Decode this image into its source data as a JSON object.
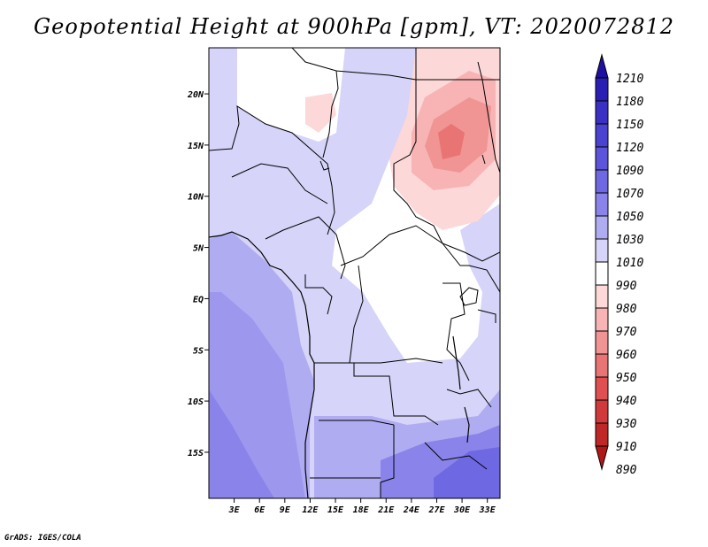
{
  "title": "Geopotential Height at 900hPa [gpm], VT: 2020072812",
  "credit": "GrADS: IGES/COLA",
  "map": {
    "lon_ticks": [
      "3E",
      "6E",
      "9E",
      "12E",
      "15E",
      "18E",
      "21E",
      "24E",
      "27E",
      "30E",
      "33E"
    ],
    "lat_ticks": [
      "20N",
      "15N",
      "10N",
      "5N",
      "EQ",
      "5S",
      "10S",
      "15S"
    ],
    "lon_range": [
      0,
      34.5
    ],
    "lat_range": [
      -19.5,
      24.5
    ]
  },
  "colorbar": {
    "labels": [
      "1210",
      "1180",
      "1150",
      "1120",
      "1090",
      "1070",
      "1050",
      "1030",
      "1010",
      "990",
      "980",
      "970",
      "960",
      "950",
      "940",
      "930",
      "910",
      "890"
    ],
    "colors": [
      "#1e10a0",
      "#2a1fb4",
      "#3a30c4",
      "#4a42d0",
      "#5c55da",
      "#6e68e2",
      "#8a84ea",
      "#b0acf2",
      "#d6d4f8",
      "#ffffff",
      "#fcd8d8",
      "#f8b4b4",
      "#f09494",
      "#e87474",
      "#e05050",
      "#d03a3a",
      "#c02828",
      "#b01818"
    ]
  }
}
